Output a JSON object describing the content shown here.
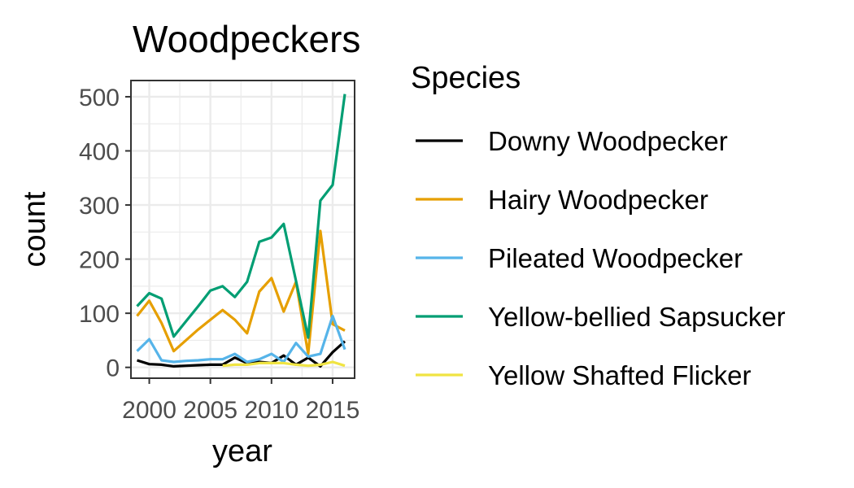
{
  "chart_data": {
    "type": "line",
    "title": "Woodpeckers",
    "xlabel": "year",
    "ylabel": "count",
    "xlim": [
      1998.5,
      2016.8
    ],
    "ylim": [
      -20,
      530
    ],
    "x_ticks": [
      2000,
      2005,
      2010,
      2015
    ],
    "x_tick_labels": [
      "2000",
      "2005",
      "2010",
      "2015"
    ],
    "y_ticks": [
      0,
      100,
      200,
      300,
      400,
      500
    ],
    "y_tick_labels": [
      "0",
      "100",
      "200",
      "300",
      "400",
      "500"
    ],
    "grid": true,
    "legend_title": "Species",
    "legend_position": "right",
    "series": [
      {
        "name": "Downy Woodpecker",
        "color": "#000000",
        "x": [
          1999,
          2000,
          2001,
          2002,
          2003,
          2004,
          2005,
          2006,
          2007,
          2008,
          2009,
          2010,
          2011,
          2012,
          2013,
          2014,
          2015,
          2016
        ],
        "y": [
          13,
          6,
          5,
          2,
          3,
          4,
          5,
          5,
          18,
          8,
          10,
          8,
          22,
          5,
          18,
          2,
          28,
          48
        ]
      },
      {
        "name": "Hairy Woodpecker",
        "color": "#E69F00",
        "x": [
          1999,
          2000,
          2001,
          2002,
          2003,
          2004,
          2005,
          2006,
          2007,
          2008,
          2009,
          2010,
          2011,
          2012,
          2013,
          2014,
          2015,
          2016
        ],
        "y": [
          95,
          123,
          82,
          30,
          50,
          70,
          88,
          106,
          88,
          63,
          140,
          165,
          103,
          158,
          25,
          252,
          80,
          68
        ]
      },
      {
        "name": "Pileated Woodpecker",
        "color": "#56B4E9",
        "x": [
          1999,
          2000,
          2001,
          2002,
          2003,
          2004,
          2005,
          2006,
          2007,
          2008,
          2009,
          2010,
          2011,
          2012,
          2013,
          2014,
          2015,
          2016
        ],
        "y": [
          30,
          52,
          13,
          10,
          12,
          13,
          15,
          15,
          25,
          10,
          15,
          25,
          10,
          45,
          20,
          25,
          95,
          33
        ]
      },
      {
        "name": "Yellow-bellied Sapsucker",
        "color": "#009E73",
        "x": [
          1999,
          2000,
          2001,
          2002,
          2003,
          2004,
          2005,
          2006,
          2007,
          2008,
          2009,
          2010,
          2011,
          2012,
          2013,
          2014,
          2015,
          2016
        ],
        "y": [
          113,
          137,
          127,
          57,
          85,
          113,
          142,
          150,
          130,
          158,
          232,
          240,
          265,
          160,
          55,
          308,
          337,
          505
        ]
      },
      {
        "name": "Yellow Shafted Flicker",
        "color": "#F0E442",
        "x": [
          2006,
          2007,
          2008,
          2009,
          2010,
          2011,
          2012,
          2013,
          2014,
          2015,
          2016
        ],
        "y": [
          3,
          5,
          5,
          8,
          8,
          8,
          5,
          3,
          5,
          10,
          3
        ]
      }
    ]
  }
}
